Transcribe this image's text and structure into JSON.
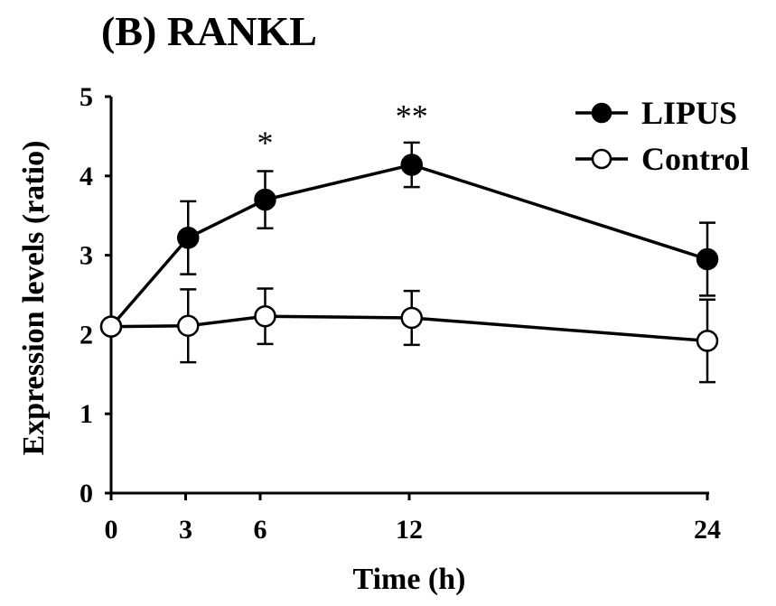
{
  "chart_data": {
    "type": "line",
    "title": "(B) RANKL",
    "xlabel": "Time (h)",
    "ylabel": "Expression levels (ratio)",
    "x": [
      0,
      3,
      6,
      12,
      24
    ],
    "xticks": [
      0,
      3,
      6,
      12,
      24
    ],
    "yticks": [
      0,
      1,
      2,
      3,
      4,
      5
    ],
    "xlim": [
      0,
      24
    ],
    "ylim": [
      0,
      5
    ],
    "grid": false,
    "legend": "top-right",
    "series": [
      {
        "name": "LIPUS",
        "marker": "filled-circle",
        "color": "#000000",
        "points": [
          {
            "x": 0,
            "y": 2.1,
            "err": 0
          },
          {
            "x": 3.1,
            "y": 3.22,
            "err": 0.46
          },
          {
            "x": 6.2,
            "y": 3.7,
            "err": 0.36
          },
          {
            "x": 12.1,
            "y": 4.14,
            "err": 0.28
          },
          {
            "x": 24,
            "y": 2.95,
            "err": 0.46
          }
        ]
      },
      {
        "name": "Control",
        "marker": "open-circle",
        "color": "#000000",
        "points": [
          {
            "x": 0,
            "y": 2.1,
            "err": 0
          },
          {
            "x": 3.1,
            "y": 2.11,
            "err": 0.46
          },
          {
            "x": 6.2,
            "y": 2.23,
            "err": 0.35
          },
          {
            "x": 12.1,
            "y": 2.21,
            "err": 0.34
          },
          {
            "x": 24,
            "y": 1.92,
            "err": 0.52
          }
        ]
      }
    ],
    "annotations": [
      {
        "text": "*",
        "x": 6.2,
        "y": 4.28
      },
      {
        "text": "**",
        "x": 12.1,
        "y": 4.62
      }
    ]
  }
}
